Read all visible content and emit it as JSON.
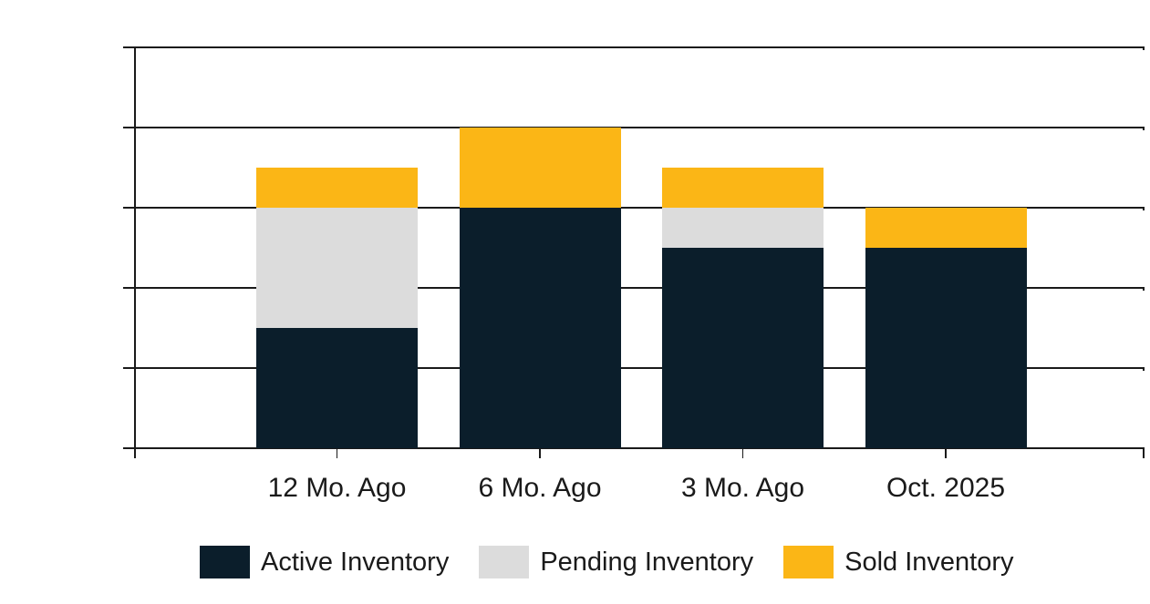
{
  "chart_data": {
    "type": "bar",
    "stacked": true,
    "title": "",
    "xlabel": "",
    "ylabel": "",
    "categories": [
      "12 Mo. Ago",
      "6 Mo. Ago",
      "3 Mo. Ago",
      "Oct. 2025"
    ],
    "series": [
      {
        "name": "Active Inventory",
        "color": "#0B1E2B",
        "values": [
          3,
          6,
          5,
          5
        ]
      },
      {
        "name": "Pending Inventory",
        "color": "#DCDCDC",
        "values": [
          3,
          0,
          1,
          0
        ]
      },
      {
        "name": "Sold Inventory",
        "color": "#FBB616",
        "values": [
          1,
          2,
          1,
          1
        ]
      }
    ],
    "stack_totals": [
      7,
      8,
      7,
      6
    ],
    "ylim": [
      0,
      10
    ],
    "yticks": [
      0,
      2,
      4,
      6,
      8,
      10
    ],
    "grid": true,
    "gridlines_behind_bars": true,
    "legend_position": "bottom"
  },
  "colors": {
    "background": "#FFFFFF",
    "axis": "#1A1A1A",
    "grid": "#1A1A1A",
    "y_tick_label": "#6B6B6B",
    "x_tick_label": "#1A1A1A",
    "legend_text": "#1A1A1A",
    "active_inventory": "#0B1E2B",
    "pending_inventory": "#DCDCDC",
    "sold_inventory": "#FBB616"
  }
}
